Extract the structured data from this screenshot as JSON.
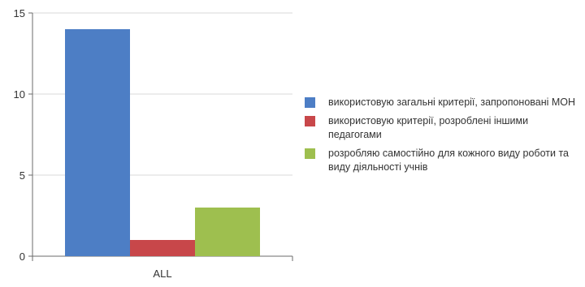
{
  "chart_data": {
    "type": "bar",
    "categories": [
      "ALL"
    ],
    "ylim": [
      0,
      15
    ],
    "yticks": [
      0,
      5,
      10,
      15
    ],
    "grid": true,
    "legend_position": "right",
    "series": [
      {
        "name": "використовую загальні критерії, запропоновані МОН",
        "values": [
          14
        ],
        "color": "#4d7ec5"
      },
      {
        "name": "використовую критерії, розроблені іншими педагогами",
        "values": [
          1
        ],
        "color": "#c8474a"
      },
      {
        "name": "розробляю самостійно для кожного виду роботи та виду діяльності учнів",
        "values": [
          3
        ],
        "color": "#9ebf4f"
      }
    ]
  },
  "colors": {
    "grid": "#d9d9d9",
    "axis": "#6b6b6b"
  }
}
